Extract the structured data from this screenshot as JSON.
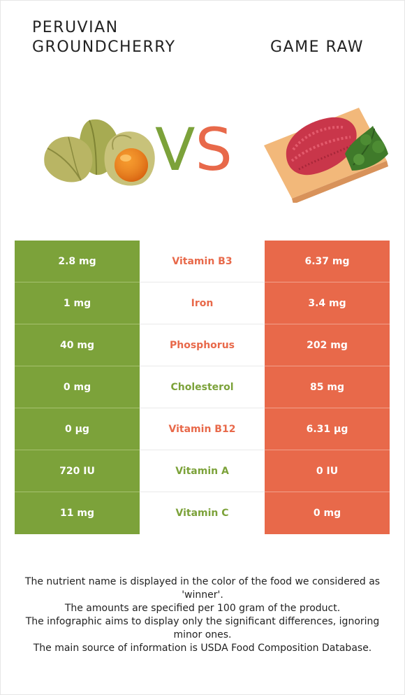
{
  "header": {
    "left_title_line1": "PERUVIAN",
    "left_title_line2": "GROUNDCHERRY",
    "right_title": "GAME RAW",
    "vs_v": "V",
    "vs_s": "S"
  },
  "colors": {
    "left": "#7ca23a",
    "right": "#e8694a"
  },
  "rows": [
    {
      "left": "2.8 mg",
      "nutrient": "Vitamin B3",
      "right": "6.37 mg",
      "winner": "right"
    },
    {
      "left": "1 mg",
      "nutrient": "Iron",
      "right": "3.4 mg",
      "winner": "right"
    },
    {
      "left": "40 mg",
      "nutrient": "Phosphorus",
      "right": "202 mg",
      "winner": "right"
    },
    {
      "left": "0 mg",
      "nutrient": "Cholesterol",
      "right": "85 mg",
      "winner": "left"
    },
    {
      "left": "0 µg",
      "nutrient": "Vitamin B12",
      "right": "6.31 µg",
      "winner": "right"
    },
    {
      "left": "720 IU",
      "nutrient": "Vitamin A",
      "right": "0 IU",
      "winner": "left"
    },
    {
      "left": "11 mg",
      "nutrient": "Vitamin C",
      "right": "0 mg",
      "winner": "left"
    }
  ],
  "notes": [
    "The nutrient name is displayed in the color of the food we considered as 'winner'.",
    "The amounts are specified per 100 gram of the product.",
    "The infographic aims to display only the significant differences, ignoring minor ones.",
    "The main source of information is USDA Food Composition Database."
  ]
}
